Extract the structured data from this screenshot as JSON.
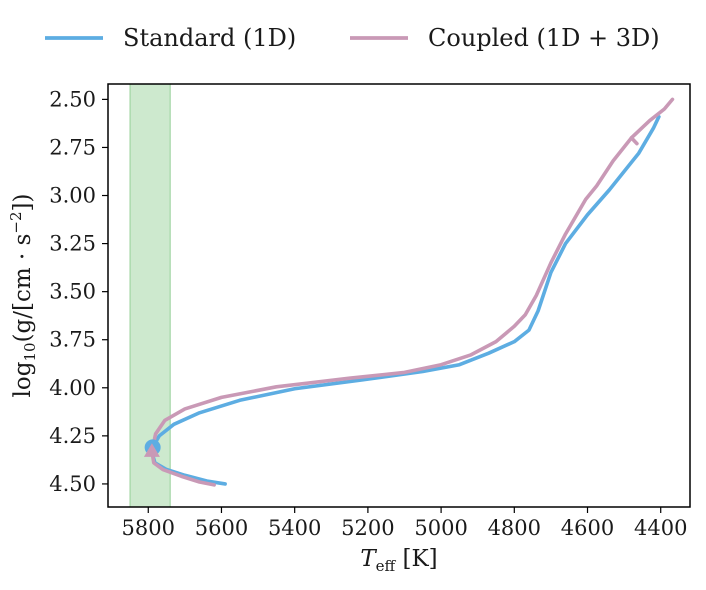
{
  "chart_data": {
    "type": "line",
    "xlabel": "T_eff [K]",
    "xlabel_main": "T",
    "xlabel_sub": "eff",
    "xlabel_unit": " [K]",
    "ylabel": "log10(g/[cm · s^-2])",
    "ylabel_prefix": "log",
    "ylabel_sub": "10",
    "ylabel_body": "(g/[cm · s",
    "ylabel_sup": "−2",
    "ylabel_close": "])",
    "xlim": [
      5910,
      4320
    ],
    "ylim": [
      4.62,
      2.42
    ],
    "x_inverted": true,
    "y_inverted": true,
    "xticks": [
      5800,
      5600,
      5400,
      5200,
      5000,
      4800,
      4600,
      4400
    ],
    "xtick_labels": [
      "5800",
      "5600",
      "5400",
      "5200",
      "5000",
      "4800",
      "4600",
      "4400"
    ],
    "yticks": [
      2.5,
      2.75,
      3.0,
      3.25,
      3.5,
      3.75,
      4.0,
      4.25,
      4.5
    ],
    "ytick_labels": [
      "2.50",
      "2.75",
      "3.00",
      "3.25",
      "3.50",
      "3.75",
      "4.00",
      "4.25",
      "4.50"
    ],
    "grid": false,
    "legend_placement": "top, outside plot",
    "shaded_band": {
      "x_range": [
        5850,
        5740
      ],
      "color": "#4caf50"
    },
    "series": [
      {
        "name": "Standard (1D)",
        "color": "#5dade2",
        "marker": "circle",
        "marker_point": [
          5788,
          4.31
        ],
        "points": [
          [
            5590,
            4.5
          ],
          [
            5640,
            4.485
          ],
          [
            5700,
            4.455
          ],
          [
            5750,
            4.425
          ],
          [
            5782,
            4.39
          ],
          [
            5790,
            4.335
          ],
          [
            5788,
            4.31
          ],
          [
            5770,
            4.25
          ],
          [
            5730,
            4.19
          ],
          [
            5660,
            4.13
          ],
          [
            5550,
            4.065
          ],
          [
            5400,
            4.005
          ],
          [
            5200,
            3.955
          ],
          [
            5050,
            3.915
          ],
          [
            4950,
            3.88
          ],
          [
            4870,
            3.82
          ],
          [
            4800,
            3.76
          ],
          [
            4760,
            3.7
          ],
          [
            4735,
            3.6
          ],
          [
            4700,
            3.4
          ],
          [
            4660,
            3.25
          ],
          [
            4600,
            3.1
          ],
          [
            4540,
            2.97
          ],
          [
            4460,
            2.78
          ],
          [
            4420,
            2.65
          ],
          [
            4405,
            2.59
          ]
        ]
      },
      {
        "name": "Coupled (1D + 3D)",
        "color": "#c999b6",
        "marker": "triangle",
        "marker_point": [
          5790,
          4.33
        ],
        "points": [
          [
            4368,
            2.5
          ],
          [
            4390,
            2.55
          ],
          [
            4430,
            2.61
          ],
          [
            4480,
            2.7
          ],
          [
            4530,
            2.82
          ],
          [
            4575,
            2.95
          ],
          [
            4605,
            3.02
          ],
          [
            4660,
            3.2
          ],
          [
            4700,
            3.35
          ],
          [
            4740,
            3.52
          ],
          [
            4770,
            3.62
          ],
          [
            4800,
            3.68
          ],
          [
            4850,
            3.76
          ],
          [
            4920,
            3.83
          ],
          [
            5000,
            3.88
          ],
          [
            5100,
            3.92
          ],
          [
            5250,
            3.95
          ],
          [
            5450,
            3.995
          ],
          [
            5600,
            4.05
          ],
          [
            5700,
            4.11
          ],
          [
            5755,
            4.17
          ],
          [
            5780,
            4.24
          ],
          [
            5790,
            4.33
          ],
          [
            5785,
            4.39
          ],
          [
            5760,
            4.425
          ],
          [
            5710,
            4.46
          ],
          [
            5660,
            4.49
          ],
          [
            5620,
            4.505
          ]
        ],
        "extra_tip": [
          [
            4480,
            2.7
          ],
          [
            4465,
            2.73
          ]
        ]
      }
    ]
  }
}
